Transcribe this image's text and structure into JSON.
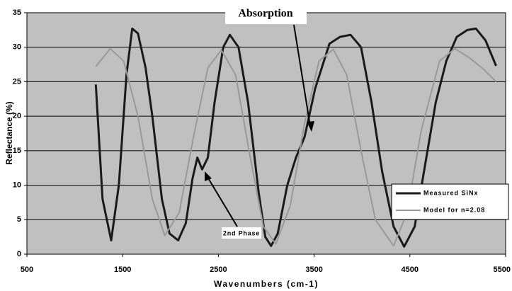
{
  "chart_data": {
    "type": "line",
    "xlabel": "Wavenumbers (cm-1)",
    "ylabel": "Reflectance (%)",
    "xlim": [
      500,
      5500
    ],
    "xticks": [
      500,
      1500,
      2500,
      3500,
      4500,
      5500
    ],
    "ylim": [
      0,
      35
    ],
    "yticks": [
      0,
      5,
      10,
      15,
      20,
      25,
      30,
      35
    ],
    "grid": true,
    "legend": "right",
    "series": [
      {
        "name": "Measured SiNx",
        "color": "#1a1a1a",
        "x": [
          1220,
          1290,
          1380,
          1460,
          1540,
          1600,
          1660,
          1740,
          1810,
          1910,
          1990,
          2080,
          2160,
          2230,
          2280,
          2330,
          2390,
          2460,
          2550,
          2620,
          2710,
          2810,
          2920,
          2990,
          3050,
          3120,
          3220,
          3310,
          3400,
          3510,
          3660,
          3770,
          3880,
          3990,
          4100,
          4210,
          4330,
          4440,
          4550,
          4660,
          4770,
          4880,
          4990,
          5100,
          5190,
          5290,
          5400
        ],
        "values": [
          24.6,
          8,
          2,
          10,
          26,
          32.7,
          32,
          27,
          20,
          8,
          3,
          2,
          4.5,
          11,
          14,
          12.3,
          14,
          22,
          30,
          31.8,
          30,
          22,
          9,
          2.5,
          1.2,
          3,
          10,
          14,
          17,
          24,
          30.5,
          31.5,
          31.8,
          30,
          22,
          12,
          4,
          1.1,
          4,
          13,
          22,
          28,
          31.5,
          32.5,
          32.7,
          31,
          27.3
        ]
      },
      {
        "name": "Model for n=2.08",
        "color": "#999999",
        "x": [
          1220,
          1370,
          1510,
          1660,
          1810,
          1940,
          2090,
          2240,
          2390,
          2530,
          2680,
          2820,
          2970,
          3100,
          3250,
          3400,
          3550,
          3700,
          3840,
          3990,
          4140,
          4330,
          4470,
          4620,
          4810,
          4970,
          5120,
          5270,
          5400
        ],
        "values": [
          27.2,
          29.8,
          28,
          20,
          8,
          2.7,
          6,
          17,
          27,
          29.6,
          26,
          15,
          4,
          1.5,
          7,
          19,
          28,
          29.7,
          26,
          15,
          5,
          1.2,
          6,
          18,
          28,
          29.8,
          28.5,
          26.8,
          25
        ]
      }
    ],
    "annotations": [
      {
        "text": "Absorption"
      },
      {
        "text": "2nd Phase"
      }
    ]
  }
}
